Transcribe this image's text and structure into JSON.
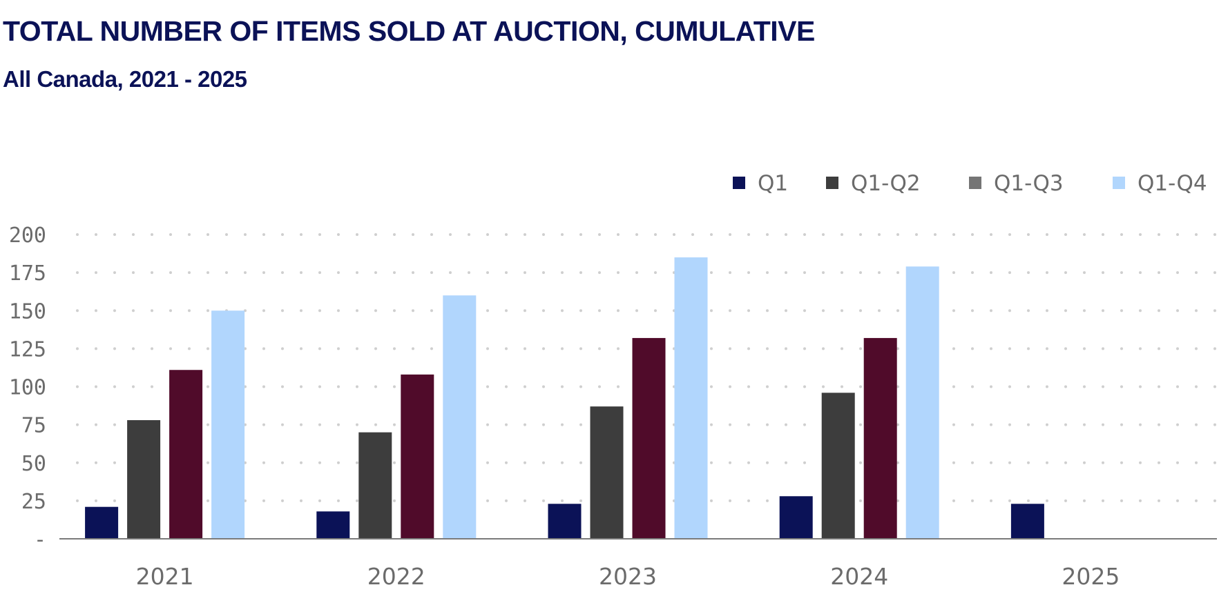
{
  "chart_data": {
    "type": "bar",
    "title": "TOTAL NUMBER OF ITEMS SOLD AT AUCTION, CUMULATIVE",
    "subtitle": "All Canada, 2021 - 2025",
    "categories": [
      "2021",
      "2022",
      "2023",
      "2024",
      "2025"
    ],
    "series": [
      {
        "name": "Q1",
        "legend_color": "#0b1257",
        "bar_color": "#0b1257",
        "values": [
          21,
          18,
          23,
          28,
          23
        ]
      },
      {
        "name": "Q1-Q2",
        "legend_color": "#3d3d3d",
        "bar_color": "#3d3d3d",
        "values": [
          78,
          70,
          87,
          96,
          null
        ]
      },
      {
        "name": "Q1-Q3",
        "legend_color": "#757575",
        "bar_color": "#500b2a",
        "values": [
          111,
          108,
          132,
          132,
          null
        ]
      },
      {
        "name": "Q1-Q4",
        "legend_color": "#b1d6fd",
        "bar_color": "#b1d6fd",
        "values": [
          150,
          160,
          185,
          179,
          null
        ]
      }
    ],
    "yticks": [
      0,
      25,
      50,
      75,
      100,
      125,
      150,
      175,
      200
    ],
    "ytick_labels": [
      "-",
      "25",
      "50",
      "75",
      "100",
      "125",
      "150",
      "175",
      "200"
    ],
    "ylim": [
      0,
      200
    ],
    "xlabel": "",
    "ylabel": "",
    "grid": "horizontal dotted",
    "legend_position": "top-right"
  }
}
